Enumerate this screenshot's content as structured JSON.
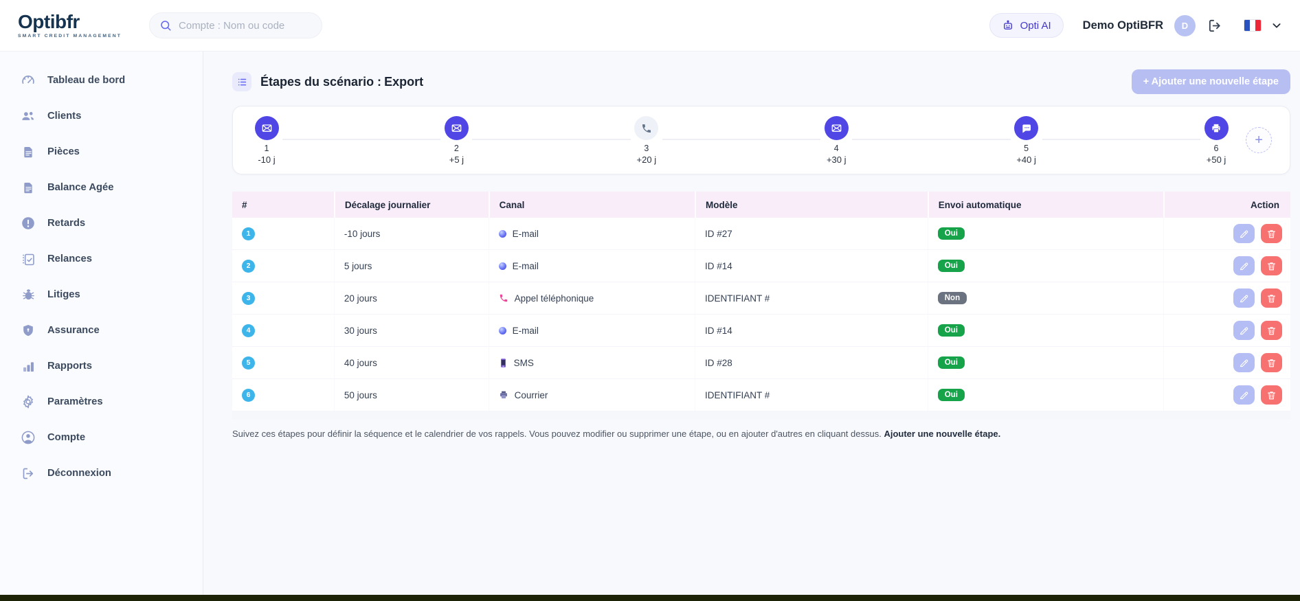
{
  "header": {
    "logo_title": "Optibfr",
    "logo_subtitle": "SMART CREDIT MANAGEMENT",
    "search_placeholder": "Compte : Nom ou code",
    "opti_ai_label": "Opti AI",
    "user_name": "Demo OptiBFR",
    "avatar_initial": "D"
  },
  "sidebar": {
    "items": [
      {
        "id": "tableau-de-bord",
        "label": "Tableau de bord",
        "icon": "dashboard-icon"
      },
      {
        "id": "clients",
        "label": "Clients",
        "icon": "users-icon"
      },
      {
        "id": "pieces",
        "label": "Pièces",
        "icon": "document-icon"
      },
      {
        "id": "balance-agee",
        "label": "Balance Agée",
        "icon": "document-icon"
      },
      {
        "id": "retards",
        "label": "Retards",
        "icon": "alert-circle-icon"
      },
      {
        "id": "relances",
        "label": "Relances",
        "icon": "checklist-icon"
      },
      {
        "id": "litiges",
        "label": "Litiges",
        "icon": "bug-icon"
      },
      {
        "id": "assurance",
        "label": "Assurance",
        "icon": "shield-icon"
      },
      {
        "id": "rapports",
        "label": "Rapports",
        "icon": "bar-chart-icon"
      },
      {
        "id": "parametres",
        "label": "Paramètres",
        "icon": "gear-icon"
      },
      {
        "id": "compte",
        "label": "Compte",
        "icon": "account-icon"
      },
      {
        "id": "deconnexion",
        "label": "Déconnexion",
        "icon": "logout-icon"
      }
    ]
  },
  "main": {
    "title_prefix": "Étapes du scénario :",
    "title_value": "Export",
    "add_step_button": "+ Ajouter une nouvelle étape",
    "timeline": {
      "steps": [
        {
          "number": "1",
          "offset": "-10 j",
          "channel": "email",
          "icon": "envelope-icon",
          "active": true
        },
        {
          "number": "2",
          "offset": "+5 j",
          "channel": "email",
          "icon": "envelope-icon",
          "active": true
        },
        {
          "number": "3",
          "offset": "+20 j",
          "channel": "phone",
          "icon": "phone-icon",
          "active": false
        },
        {
          "number": "4",
          "offset": "+30 j",
          "channel": "email",
          "icon": "envelope-icon",
          "active": true
        },
        {
          "number": "5",
          "offset": "+40 j",
          "channel": "sms",
          "icon": "chat-icon",
          "active": true
        },
        {
          "number": "6",
          "offset": "+50 j",
          "channel": "courrier",
          "icon": "printer-icon",
          "active": true
        }
      ],
      "add_circle_label": "+"
    },
    "table": {
      "columns": [
        "#",
        "Décalage journalier",
        "Canal",
        "Modèle",
        "Envoi automatique",
        "Action"
      ],
      "rows": [
        {
          "num": "1",
          "offset": "-10 jours",
          "canal": "E-mail",
          "canal_icon": "email-icon",
          "modele": "ID #27",
          "auto": "Oui"
        },
        {
          "num": "2",
          "offset": "5 jours",
          "canal": "E-mail",
          "canal_icon": "email-icon",
          "modele": "ID #14",
          "auto": "Oui"
        },
        {
          "num": "3",
          "offset": "20 jours",
          "canal": "Appel téléphonique",
          "canal_icon": "phone-icon",
          "modele": "IDENTIFIANT #",
          "auto": "Non"
        },
        {
          "num": "4",
          "offset": "30 jours",
          "canal": "E-mail",
          "canal_icon": "email-icon",
          "modele": "ID #14",
          "auto": "Oui"
        },
        {
          "num": "5",
          "offset": "40 jours",
          "canal": "SMS",
          "canal_icon": "sms-icon",
          "modele": "ID #28",
          "auto": "Oui"
        },
        {
          "num": "6",
          "offset": "50 jours",
          "canal": "Courrier",
          "canal_icon": "printer-icon",
          "modele": "IDENTIFIANT #",
          "auto": "Oui"
        }
      ]
    },
    "footer_note": "Suivez ces étapes pour définir la séquence et le calendrier de vos rappels. Vous pouvez modifier ou supprimer une étape, ou en ajouter d'autres en cliquant dessus.",
    "footer_note_bold": "Ajouter une nouvelle étape."
  },
  "colors": {
    "accent_purple": "#4f46e5",
    "periwinkle_button": "#b7bef2",
    "cyan_row_badge": "#3db5ea",
    "green_oui": "#16a34a",
    "gray_non": "#6b7280",
    "red_delete": "#f87171",
    "table_header_bg": "#f8edf9",
    "page_bg": "#f8f9fd",
    "bottom_bar": "#1c2307",
    "flag_blue": "#2a52be",
    "flag_red": "#ed2939"
  }
}
